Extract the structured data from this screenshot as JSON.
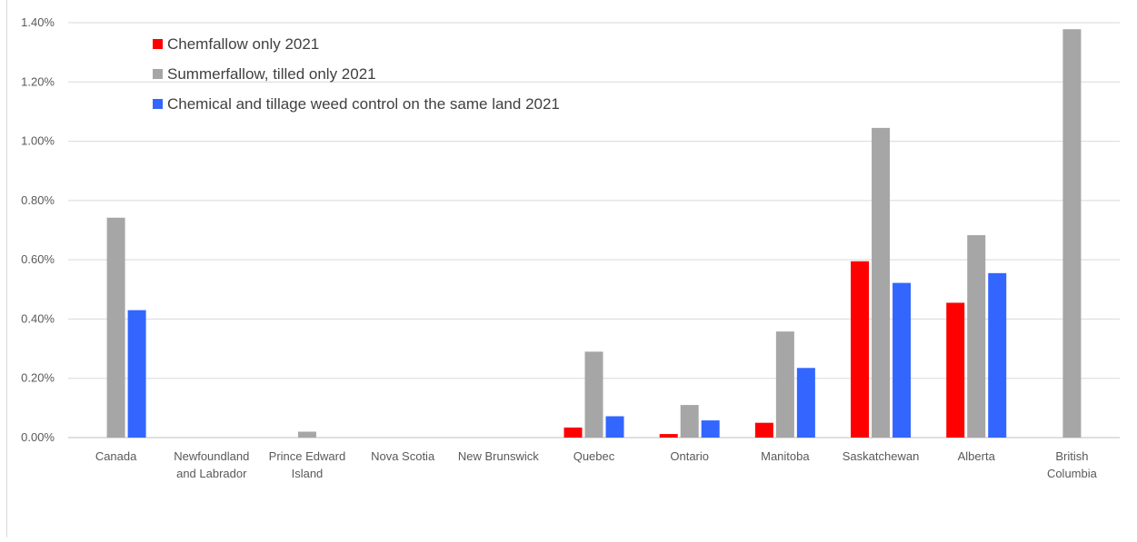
{
  "chart_data": {
    "type": "bar",
    "categories": [
      [
        "Canada"
      ],
      [
        "Newfoundland",
        "and Labrador"
      ],
      [
        "Prince Edward",
        "Island"
      ],
      [
        "Nova Scotia"
      ],
      [
        "New Brunswick"
      ],
      [
        "Quebec"
      ],
      [
        "Ontario"
      ],
      [
        "Manitoba"
      ],
      [
        "Saskatchewan"
      ],
      [
        "Alberta"
      ],
      [
        "British",
        "Columbia"
      ]
    ],
    "series": [
      {
        "name": "Chemfallow only 2021",
        "color": "#ff0000",
        "values": [
          0,
          0,
          0,
          0,
          0,
          0.034,
          0.012,
          0.05,
          0.595,
          0.455,
          0
        ]
      },
      {
        "name": "Summerfallow, tilled only 2021",
        "color": "#a6a6a6",
        "values": [
          0.742,
          0,
          0.02,
          0,
          0,
          0.29,
          0.11,
          0.358,
          1.045,
          0.683,
          1.378
        ]
      },
      {
        "name": "Chemical and tillage weed control on the same land 2021",
        "color": "#3366ff",
        "values": [
          0.43,
          0,
          0,
          0,
          0,
          0.072,
          0.058,
          0.235,
          0.522,
          0.555,
          0
        ]
      }
    ],
    "yticks": [
      "0.00%",
      "0.20%",
      "0.40%",
      "0.60%",
      "0.80%",
      "1.00%",
      "1.20%",
      "1.40%"
    ],
    "ylim": [
      0,
      1.4
    ],
    "value_unit": "percent",
    "grid": true,
    "legend_position": "top-left inside plot"
  }
}
